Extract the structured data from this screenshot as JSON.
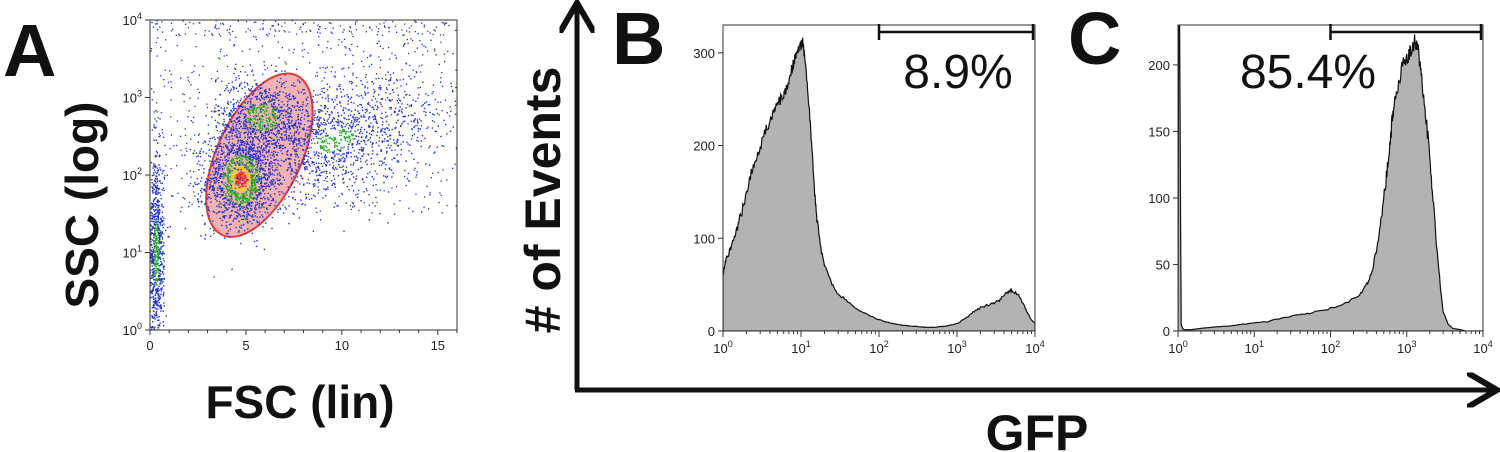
{
  "panels": {
    "a_label": "A",
    "b_label": "B",
    "c_label": "C"
  },
  "shared_axes": {
    "y_title": "# of Events",
    "x_title": "GFP"
  },
  "colors": {
    "gate_fill": "#f0a4a4",
    "gate_stroke": "#e03c3c",
    "histogram_fill": "#b3b3b3",
    "dots_low": "#2233cc",
    "dots_mid": "#22aa22",
    "dots_high": "#ee2222",
    "dots_peak": "#ffcc00"
  },
  "chart_data": [
    {
      "panel": "A",
      "type": "scatter",
      "xlabel": "FSC (lin)",
      "ylabel": "SSC (log)",
      "xlim": [
        0,
        16
      ],
      "ylim": [
        1,
        10000
      ],
      "y_scale": "log",
      "x_ticks": [
        "0",
        "5",
        "10",
        "15"
      ],
      "x_tick_values": [
        0,
        5,
        10,
        15
      ],
      "y_ticks": [
        "10^0",
        "10^1",
        "10^2",
        "10^3",
        "10^4"
      ],
      "y_tick_values": [
        1,
        10,
        100,
        1000,
        10000
      ],
      "gate": {
        "shape": "ellipse",
        "center": [
          5.7,
          180
        ],
        "color": "red"
      },
      "populations": [
        {
          "name": "",
          "center_x": 4.7,
          "center_log_y": 1.95,
          "spread_x": 0.9,
          "spread_log_y": 0.3,
          "density": "high"
        },
        {
          "name": "",
          "center_x": 5.8,
          "center_log_y": 2.75,
          "spread_x": 1.2,
          "spread_log_y": 0.25,
          "density": "medium"
        },
        {
          "name": "",
          "center_x": 9.5,
          "center_log_y": 2.45,
          "spread_x": 2.8,
          "spread_log_y": 0.35,
          "density": "low"
        },
        {
          "name": "",
          "center_x": 0.3,
          "center_log_y": 1.0,
          "spread_x": 0.2,
          "spread_log_y": 0.6,
          "density": "medium"
        }
      ]
    },
    {
      "panel": "B",
      "type": "area",
      "x_scale": "log",
      "xlim": [
        1,
        10000
      ],
      "ylim": [
        0,
        330
      ],
      "x_ticks": [
        "10^0",
        "10^1",
        "10^2",
        "10^3",
        "10^4"
      ],
      "x_tick_values": [
        1,
        10,
        100,
        1000,
        10000
      ],
      "y_ticks": [
        "0",
        "100",
        "200",
        "300"
      ],
      "y_tick_values": [
        0,
        100,
        200,
        300
      ],
      "gate": {
        "from": 100,
        "to": 10000,
        "label": "8.9%"
      },
      "x": [
        1,
        1.05,
        1.1,
        1.2,
        1.3,
        1.5,
        1.7,
        2.0,
        2.3,
        2.6,
        3.0,
        3.5,
        4.0,
        4.5,
        5.0,
        5.5,
        6.0,
        6.5,
        7.0,
        7.5,
        8.0,
        8.5,
        9.0,
        9.5,
        10,
        10.5,
        11,
        12,
        13,
        14,
        15,
        16,
        18,
        20,
        25,
        30,
        40,
        50,
        70,
        100,
        150,
        200,
        300,
        400,
        500,
        700,
        1000,
        1300,
        1600,
        2000,
        2500,
        3000,
        3500,
        4000,
        4500,
        5000,
        6000,
        7000,
        8000,
        9000,
        10000
      ],
      "y": [
        60,
        70,
        80,
        85,
        95,
        110,
        125,
        150,
        170,
        185,
        200,
        215,
        225,
        235,
        245,
        250,
        255,
        262,
        270,
        280,
        288,
        295,
        300,
        303,
        308,
        312,
        300,
        270,
        230,
        190,
        150,
        120,
        90,
        70,
        50,
        40,
        32,
        25,
        18,
        12,
        8,
        6,
        5,
        4,
        4,
        5,
        8,
        14,
        20,
        25,
        28,
        30,
        33,
        38,
        42,
        44,
        40,
        30,
        20,
        12,
        8
      ]
    },
    {
      "panel": "C",
      "type": "area",
      "x_scale": "log",
      "xlim": [
        1,
        10000
      ],
      "ylim": [
        0,
        230
      ],
      "x_ticks": [
        "10^0",
        "10^1",
        "10^2",
        "10^3",
        "10^4"
      ],
      "x_tick_values": [
        1,
        10,
        100,
        1000,
        10000
      ],
      "y_ticks": [
        "0",
        "50",
        "100",
        "150",
        "200"
      ],
      "y_tick_values": [
        0,
        50,
        100,
        150,
        200
      ],
      "gate": {
        "from": 100,
        "to": 10000,
        "label": "85.4%"
      },
      "x": [
        1,
        1.02,
        1.05,
        1.1,
        1.15,
        1.2,
        1.5,
        2,
        3,
        5,
        7,
        10,
        15,
        20,
        30,
        50,
        70,
        100,
        150,
        200,
        250,
        300,
        350,
        400,
        450,
        500,
        550,
        600,
        650,
        700,
        800,
        900,
        1000,
        1100,
        1200,
        1300,
        1400,
        1500,
        1600,
        1800,
        2000,
        2200,
        2500,
        2800,
        3000,
        3500,
        4000,
        5000,
        6000,
        8000,
        10000
      ],
      "y": [
        0,
        228,
        228,
        5,
        2,
        1,
        1,
        2,
        3,
        4,
        5,
        6,
        7,
        9,
        11,
        13,
        15,
        17,
        20,
        24,
        28,
        35,
        45,
        60,
        80,
        100,
        120,
        140,
        160,
        175,
        190,
        200,
        205,
        210,
        215,
        218,
        212,
        200,
        185,
        160,
        130,
        100,
        60,
        30,
        15,
        5,
        2,
        1,
        0,
        0,
        0
      ]
    }
  ]
}
